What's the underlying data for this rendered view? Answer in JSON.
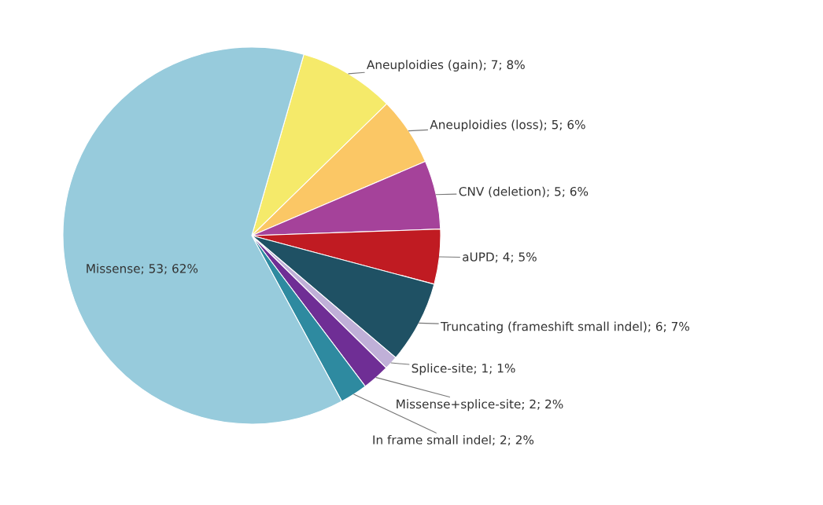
{
  "chart_data": {
    "type": "pie",
    "categories": [
      "Aneuploidies (gain)",
      "Aneuploidies (loss)",
      "CNV (deletion)",
      "aUPD",
      "Truncating (frameshift small indel)",
      "Splice-site",
      "Missense+splice-site",
      "In frame small indel",
      "Missense"
    ],
    "values": [
      7,
      5,
      5,
      4,
      6,
      1,
      2,
      2,
      53
    ],
    "value_labels": [
      "7; 8%",
      "5; 6%",
      "5; 6%",
      "4; 5%",
      "6; 7%",
      "1; 1%",
      "2; 2%",
      "2; 2%",
      "53; 62%"
    ],
    "colors": [
      "#f5ea6a",
      "#fbc765",
      "#a5429a",
      "#c01b22",
      "#1f5164",
      "#c0b0d8",
      "#6f2e95",
      "#2e8aa0",
      "#97cbdc"
    ],
    "legend": false
  }
}
